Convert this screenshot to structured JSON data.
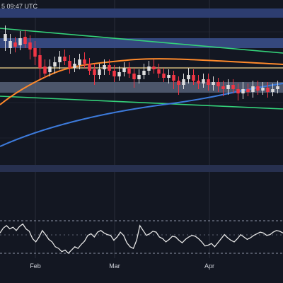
{
  "header": {
    "timestamp": "5 09:47 UTC"
  },
  "colors": {
    "background": "#131722",
    "grid": "#2a2e39",
    "zone": "#3a4e88",
    "support_zone": "#7c8aa8",
    "up": "#dedede",
    "down": "#f23645",
    "channel": "#34d27a",
    "ma_short": "#ff8a2b",
    "ma_long": "#3d7bdc",
    "level": "#b9a370",
    "separator": "#27304f",
    "rsi": "#e6e6e6",
    "rsi_band": "#8f96a8"
  },
  "chart_data": [
    {
      "type": "candlestick",
      "title": "",
      "x_tick_labels": [
        "Feb",
        "Mar",
        "Apr"
      ],
      "grid": true,
      "overlays": [
        "descending channel (green)",
        "moving average (orange)",
        "moving average (blue)",
        "horizontal support zone",
        "horizontal resistance zones"
      ]
    },
    {
      "type": "line",
      "title": "",
      "indicator": "RSI",
      "series": [
        {
          "values": [
            55,
            61,
            64,
            60,
            62,
            58,
            63,
            66,
            60,
            57,
            48,
            44,
            50,
            58,
            53,
            47,
            44,
            38,
            36,
            32,
            34,
            30,
            34,
            38,
            36,
            41,
            45,
            52,
            54,
            50,
            56,
            58,
            55,
            53,
            52,
            46,
            50,
            56,
            52,
            43,
            38,
            36,
            46,
            64,
            58,
            52,
            54,
            57,
            56,
            50,
            48,
            44,
            47,
            51,
            50,
            46,
            43,
            47,
            50,
            52,
            51,
            48,
            44,
            39,
            40,
            42,
            38,
            43,
            48,
            53,
            49,
            46,
            44,
            48,
            53,
            50,
            47,
            49,
            52,
            54,
            56,
            55,
            52,
            53,
            56,
            58,
            57,
            55
          ]
        }
      ],
      "levels": [
        70,
        30
      ]
    }
  ]
}
